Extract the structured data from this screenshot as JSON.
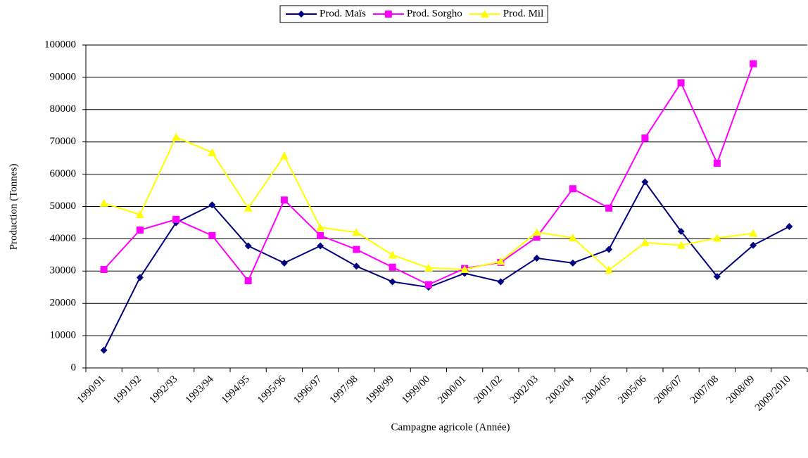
{
  "chart_data": {
    "type": "line",
    "x_label": "Campagne agricole (Année)",
    "y_label": "Production (Tonnes)",
    "categories": [
      "1990/91",
      "1991/92",
      "1992/93",
      "1993/94",
      "1994/95",
      "1995/96",
      "1996/97",
      "1997/98",
      "1998/99",
      "1999/00",
      "2000/01",
      "2001/02",
      "2002/03",
      "2003/04",
      "2004/05",
      "2005/06",
      "2006/07",
      "2007/08",
      "2008/09",
      "2009/2010"
    ],
    "series": [
      {
        "name": "Prod. Maïs",
        "color": "#000080",
        "marker": "diamond",
        "values": [
          5500,
          28000,
          45000,
          50500,
          37800,
          32500,
          37800,
          31500,
          26700,
          25000,
          29300,
          26700,
          34000,
          32500,
          36700,
          57600,
          42300,
          28300,
          38000,
          43800
        ]
      },
      {
        "name": "Prod. Sorgho",
        "color": "#ff00ff",
        "marker": "square",
        "values": [
          30500,
          42700,
          46000,
          41000,
          27000,
          52000,
          41000,
          36700,
          31200,
          25800,
          30800,
          32700,
          40500,
          55500,
          49500,
          71200,
          88300,
          63400,
          94200,
          null
        ]
      },
      {
        "name": "Prod. Mil",
        "color": "#ffff00",
        "marker": "triangle",
        "values": [
          51000,
          47500,
          71500,
          66700,
          49500,
          65700,
          43500,
          42000,
          35000,
          31000,
          30500,
          33000,
          42000,
          40300,
          30300,
          38800,
          38000,
          40200,
          41700,
          null
        ]
      }
    ],
    "ylim": [
      0,
      100000
    ],
    "yticks": [
      0,
      10000,
      20000,
      30000,
      40000,
      50000,
      60000,
      70000,
      80000,
      90000,
      100000
    ],
    "grid": true,
    "legend": "top"
  }
}
